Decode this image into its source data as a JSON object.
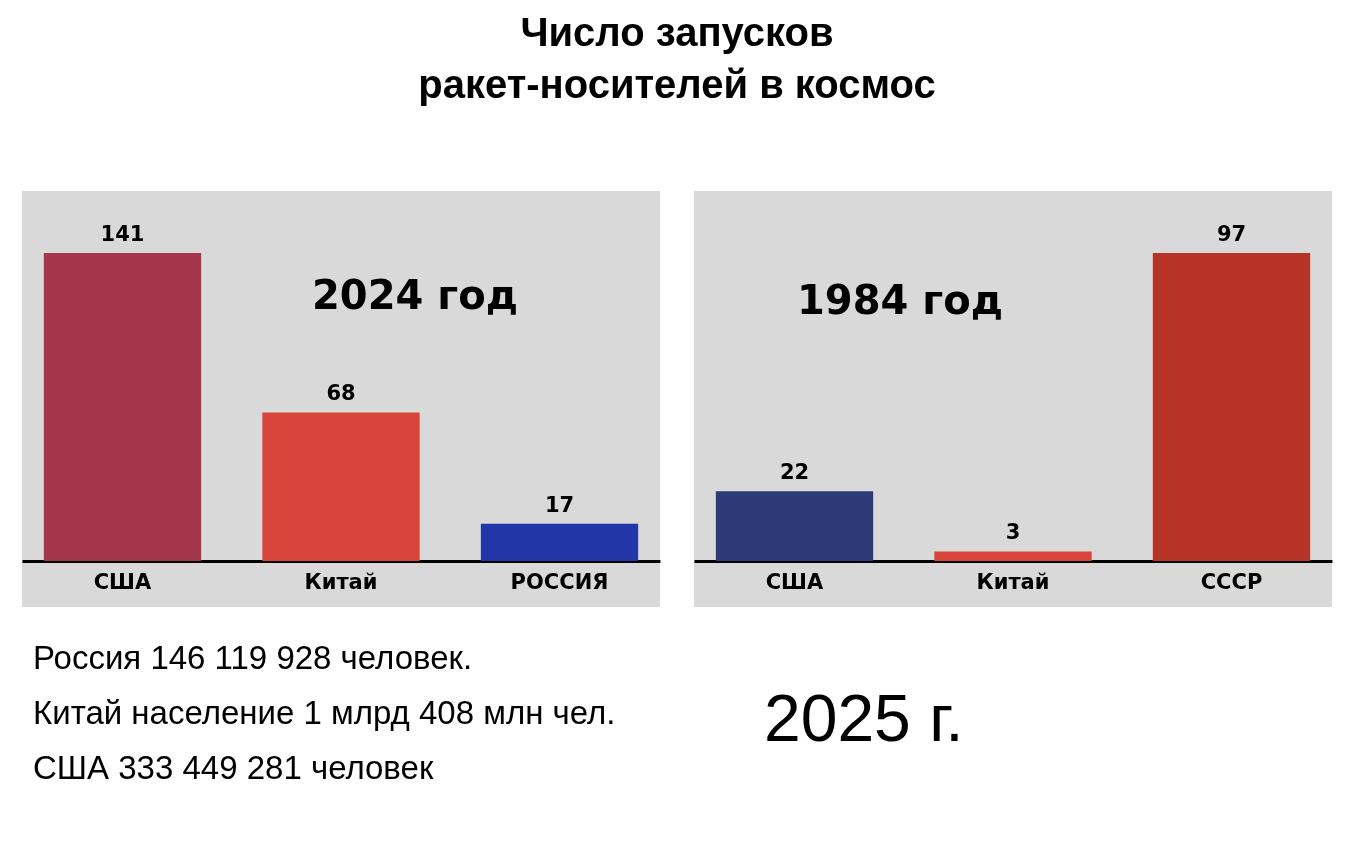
{
  "chart_data": [
    {
      "type": "bar",
      "title": "Число запусков\nракет-носителей в космос",
      "subtitle": "2024 год",
      "categories": [
        "США",
        "Китай",
        "РОССИЯ"
      ],
      "values": [
        141,
        68,
        17
      ],
      "colors": [
        "#a3364a",
        "#d9443a",
        "#2336a8"
      ],
      "data_labels": true,
      "annotations": [
        "Россия 146 119 928 человек.",
        "Китай население 1 млрд 408 млн чел.",
        "США 333 449 281 человек"
      ]
    },
    {
      "type": "bar",
      "subtitle": "1984 год",
      "categories": [
        "США",
        "Китай",
        "СССР"
      ],
      "values": [
        22,
        3,
        97
      ],
      "colors": [
        "#2c3a78",
        "#d9443a",
        "#b53327"
      ],
      "data_labels": true,
      "annotations": [
        "2025 г."
      ]
    }
  ]
}
